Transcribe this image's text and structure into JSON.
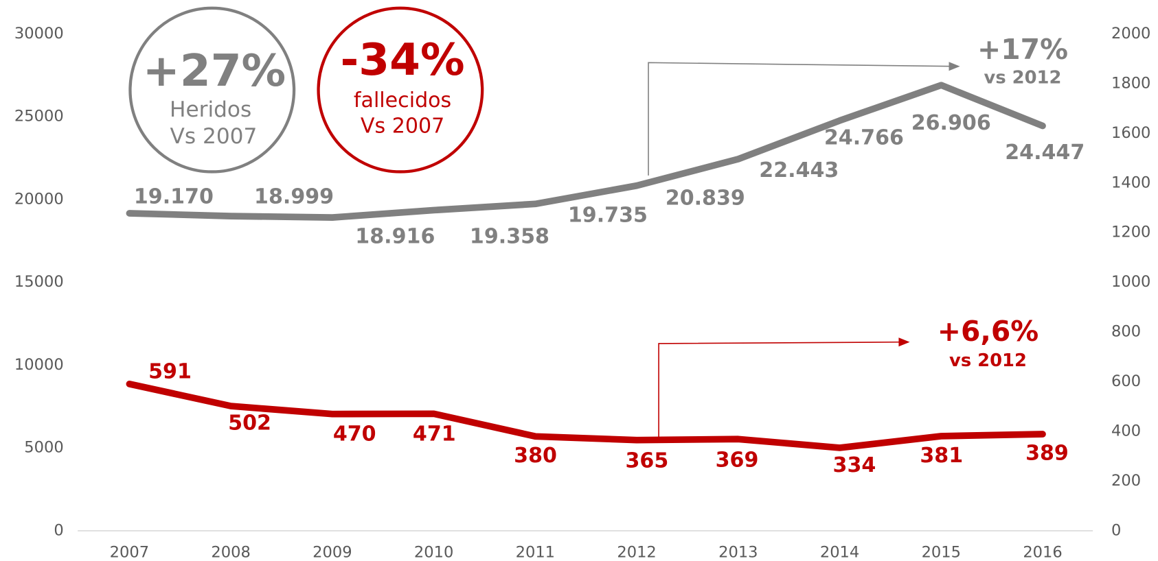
{
  "chart_data": {
    "type": "line",
    "categories": [
      "2007",
      "2008",
      "2009",
      "2010",
      "2011",
      "2012",
      "2013",
      "2014",
      "2015",
      "2016"
    ],
    "series": [
      {
        "color": "#808080",
        "axis": "y",
        "values": [
          19170,
          18999,
          18916,
          19358,
          19735,
          20839,
          22443,
          24766,
          26906,
          24447
        ],
        "value_labels": [
          "19.170",
          "18.999",
          "18.916",
          "19.358",
          "19.735",
          "20.839",
          "22.443",
          "24.766",
          "26.906",
          "24.447"
        ]
      },
      {
        "color": "#c00000",
        "axis": "y2",
        "values": [
          591,
          502,
          470,
          471,
          380,
          365,
          369,
          334,
          381,
          389
        ]
      }
    ],
    "ylim": [
      0,
      30000
    ],
    "yticks": [
      0,
      5000,
      10000,
      15000,
      20000,
      25000,
      30000
    ],
    "y2lim": [
      0,
      2000
    ],
    "y2ticks": [
      0,
      200,
      400,
      600,
      800,
      1000,
      1200,
      1400,
      1600,
      1800,
      2000
    ],
    "grid": false,
    "annotations": [
      "+27%",
      "Heridos",
      "Vs 2007",
      "-34%",
      "fallecidos",
      "Vs 2007",
      "+17%",
      "vs 2012",
      "+6,6%",
      "vs 2012"
    ]
  }
}
